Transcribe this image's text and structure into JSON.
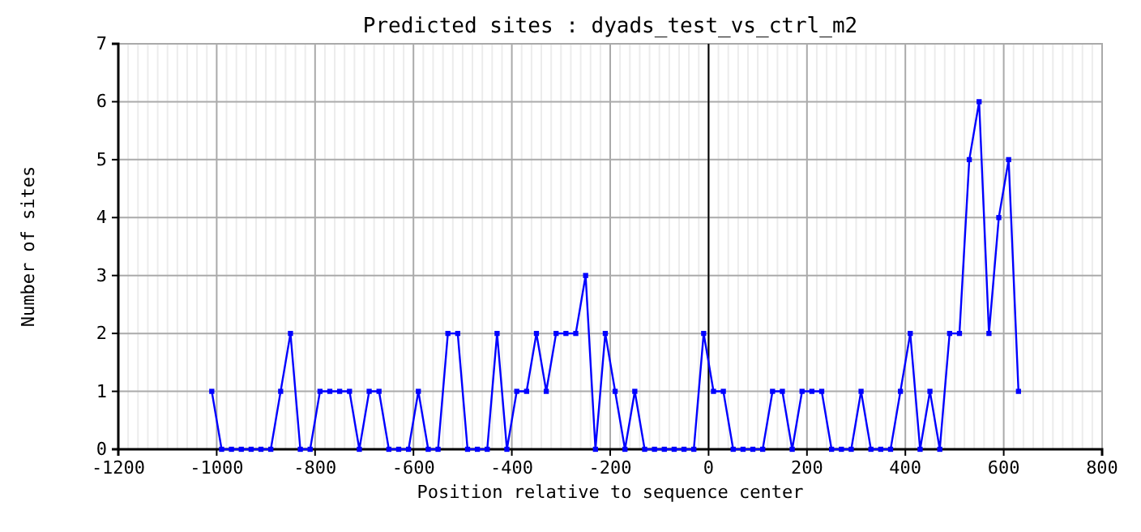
{
  "chart_data": {
    "type": "line",
    "title": "Predicted sites : dyads_test_vs_ctrl_m2",
    "xlabel": "Position relative to sequence center",
    "ylabel": "Number of sites",
    "x": [
      -1010,
      -990,
      -970,
      -950,
      -930,
      -910,
      -890,
      -870,
      -850,
      -830,
      -810,
      -790,
      -770,
      -750,
      -730,
      -710,
      -690,
      -670,
      -650,
      -630,
      -610,
      -590,
      -570,
      -550,
      -530,
      -510,
      -490,
      -470,
      -450,
      -430,
      -410,
      -390,
      -370,
      -350,
      -330,
      -310,
      -290,
      -270,
      -250,
      -230,
      -210,
      -190,
      -170,
      -150,
      -130,
      -110,
      -90,
      -70,
      -50,
      -30,
      -10,
      10,
      30,
      50,
      70,
      90,
      110,
      130,
      150,
      170,
      190,
      210,
      230,
      250,
      270,
      290,
      310,
      330,
      350,
      370,
      390,
      410,
      430,
      450,
      470,
      490,
      510,
      530,
      550,
      570,
      590,
      610,
      630
    ],
    "series": [
      {
        "color": "#0000ff",
        "values": [
          1,
          0,
          0,
          0,
          0,
          0,
          0,
          1,
          2,
          0,
          0,
          1,
          1,
          1,
          1,
          0,
          1,
          1,
          0,
          0,
          0,
          1,
          0,
          0,
          2,
          2,
          0,
          0,
          0,
          2,
          0,
          1,
          1,
          2,
          1,
          2,
          2,
          2,
          3,
          0,
          2,
          1,
          0,
          1,
          0,
          0,
          0,
          0,
          0,
          0,
          2,
          1,
          1,
          0,
          0,
          0,
          0,
          1,
          1,
          0,
          1,
          1,
          1,
          0,
          0,
          0,
          1,
          0,
          0,
          0,
          1,
          2,
          0,
          1,
          0,
          2,
          2,
          5,
          6,
          2,
          4,
          5,
          1
        ]
      }
    ],
    "xlim": [
      -1200,
      800
    ],
    "xticks": [
      -1200,
      -1000,
      -800,
      -600,
      -400,
      -200,
      0,
      200,
      400,
      600,
      800
    ],
    "ylim": [
      0,
      7
    ],
    "yticks": [
      0,
      1,
      2,
      3,
      4,
      5,
      6,
      7
    ],
    "grid": true,
    "marker": "square",
    "line_style": "solid",
    "ref_lines": [
      {
        "axis": "x",
        "value": 0,
        "color": "#000000"
      }
    ]
  }
}
